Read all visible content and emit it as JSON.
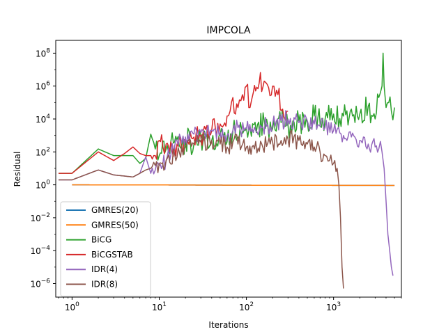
{
  "chart_data": {
    "type": "line",
    "title": "IMPCOLA",
    "xlabel": "Iterations",
    "ylabel": "Residual",
    "xscale": "log",
    "yscale": "log",
    "xlim": [
      0.65,
      6000
    ],
    "ylim": [
      1.5e-07,
      600000000.0
    ],
    "x_ticks": [
      {
        "value": 1,
        "base": "10",
        "exp": "0"
      },
      {
        "value": 10,
        "base": "10",
        "exp": "1"
      },
      {
        "value": 100,
        "base": "10",
        "exp": "2"
      },
      {
        "value": 1000,
        "base": "10",
        "exp": "3"
      }
    ],
    "y_ticks": [
      {
        "value": 1e-06,
        "base": "10",
        "exp": "−6"
      },
      {
        "value": 0.0001,
        "base": "10",
        "exp": "−4"
      },
      {
        "value": 0.01,
        "base": "10",
        "exp": "−2"
      },
      {
        "value": 1,
        "base": "10",
        "exp": "0"
      },
      {
        "value": 100,
        "base": "10",
        "exp": "2"
      },
      {
        "value": 10000.0,
        "base": "10",
        "exp": "4"
      },
      {
        "value": 1000000.0,
        "base": "10",
        "exp": "6"
      },
      {
        "value": 100000000.0,
        "base": "10",
        "exp": "8"
      }
    ],
    "grid": false,
    "legend_position": "lower-left",
    "series": [
      {
        "name": "GMRES(20)",
        "color": "#1f77b4",
        "x": [
          1,
          10,
          100,
          1000,
          5000
        ],
        "y": [
          1.0,
          0.98,
          0.95,
          0.93,
          0.92
        ]
      },
      {
        "name": "GMRES(50)",
        "color": "#ff7f0e",
        "x": [
          1,
          10,
          100,
          1000,
          5000
        ],
        "y": [
          1.0,
          0.98,
          0.95,
          0.93,
          0.92
        ]
      },
      {
        "name": "BiCG",
        "color": "#2ca02c",
        "x": [
          0.7,
          1,
          2,
          3,
          4,
          5,
          6,
          7,
          8,
          9,
          10,
          12,
          15,
          18,
          20,
          25,
          30,
          40,
          50,
          60,
          70,
          80,
          100,
          130,
          160,
          200,
          250,
          300,
          400,
          500,
          600,
          800,
          1000,
          1300,
          1600,
          2000,
          2500,
          3000,
          3300,
          3600,
          3700,
          3800,
          4000,
          4300,
          4600,
          5000
        ],
        "y": [
          5,
          5,
          150,
          60,
          60,
          60,
          20,
          40,
          1200,
          150,
          60,
          150,
          400,
          150,
          600,
          300,
          800,
          500,
          1200,
          400,
          2000,
          800,
          3000,
          1500,
          8000,
          2500,
          6000,
          4000,
          8000,
          6000,
          15000,
          10000,
          20000,
          15000,
          40000,
          20000,
          60000,
          10000,
          200000,
          1000000,
          100000000,
          1000000,
          50000,
          100000,
          30000,
          50000
        ]
      },
      {
        "name": "BiCGSTAB",
        "color": "#d62728",
        "x": [
          0.7,
          1,
          2,
          3,
          4,
          5,
          6,
          7,
          8,
          9,
          10,
          11,
          12,
          14,
          16,
          20,
          25,
          30,
          40,
          50,
          60,
          65,
          70,
          75,
          80,
          90,
          100,
          110,
          120,
          140,
          160,
          180,
          200,
          230,
          260,
          300
        ],
        "y": [
          5,
          5,
          100,
          30,
          80,
          200,
          80,
          60,
          60,
          60,
          500,
          200,
          300,
          150,
          300,
          500,
          800,
          1000,
          2000,
          5000,
          15000,
          30000,
          200000,
          20000,
          50000,
          300000,
          1000000,
          50000,
          400000,
          1500000,
          2000000,
          800000,
          1000000,
          300000,
          40000,
          30000
        ]
      },
      {
        "name": "IDR(4)",
        "color": "#9467bd",
        "x": [
          0.7,
          1,
          2,
          3,
          5,
          6,
          7,
          8,
          9,
          10,
          12,
          15,
          20,
          25,
          30,
          40,
          50,
          60,
          70,
          80,
          100,
          120,
          150,
          200,
          250,
          300,
          400,
          500,
          600,
          800,
          1000,
          1300,
          1600,
          2000,
          2500,
          3000,
          3300,
          3600,
          3800,
          4000,
          4200,
          4400,
          4600,
          4800
        ],
        "y": [
          2,
          2,
          8,
          4,
          3,
          5,
          50,
          5,
          8,
          15,
          30,
          200,
          800,
          1200,
          1500,
          2000,
          1500,
          1000,
          2000,
          3000,
          2500,
          1500,
          3000,
          5000,
          8000,
          10000,
          6000,
          8000,
          5000,
          3000,
          2000,
          1000,
          800,
          500,
          300,
          200,
          150,
          100,
          10,
          0.1,
          0.001,
          0.0001,
          1e-05,
          3e-06
        ]
      },
      {
        "name": "IDR(8)",
        "color": "#8c564b",
        "x": [
          0.7,
          1,
          2,
          3,
          5,
          6,
          7,
          8,
          9,
          10,
          12,
          15,
          20,
          25,
          30,
          40,
          50,
          60,
          70,
          80,
          100,
          120,
          150,
          200,
          250,
          300,
          400,
          500,
          600,
          700,
          800,
          900,
          1000,
          1100,
          1150,
          1200,
          1250,
          1300
        ],
        "y": [
          2,
          2,
          8,
          4,
          3,
          5,
          8,
          10,
          15,
          20,
          30,
          80,
          200,
          300,
          400,
          500,
          300,
          200,
          400,
          300,
          200,
          250,
          300,
          400,
          500,
          600,
          500,
          300,
          200,
          100,
          60,
          30,
          20,
          10,
          1,
          0.01,
          1e-05,
          5e-07
        ]
      }
    ]
  }
}
